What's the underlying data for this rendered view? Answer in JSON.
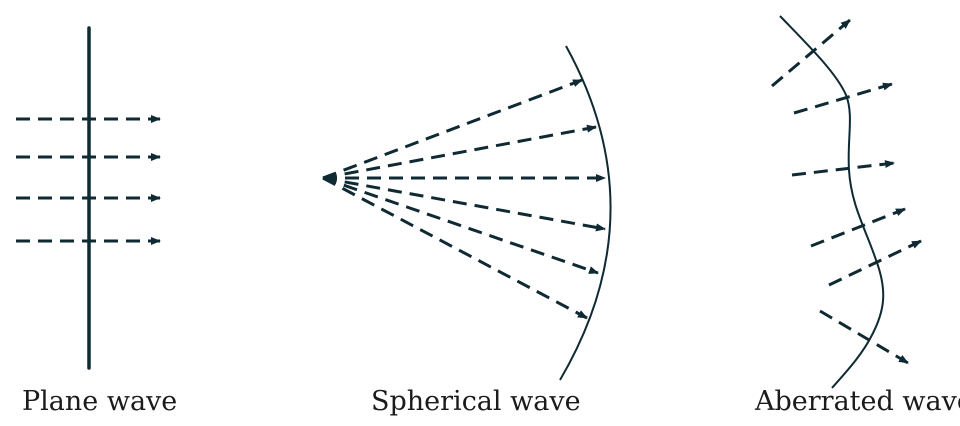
{
  "colors": {
    "stroke": "#0f2a33",
    "text": "#1b1b1b"
  },
  "panels": [
    {
      "key": "plane",
      "caption": "Plane wave"
    },
    {
      "key": "spherical",
      "caption": "Spherical wave"
    },
    {
      "key": "aberrated",
      "caption": "Aberrated wave"
    }
  ]
}
